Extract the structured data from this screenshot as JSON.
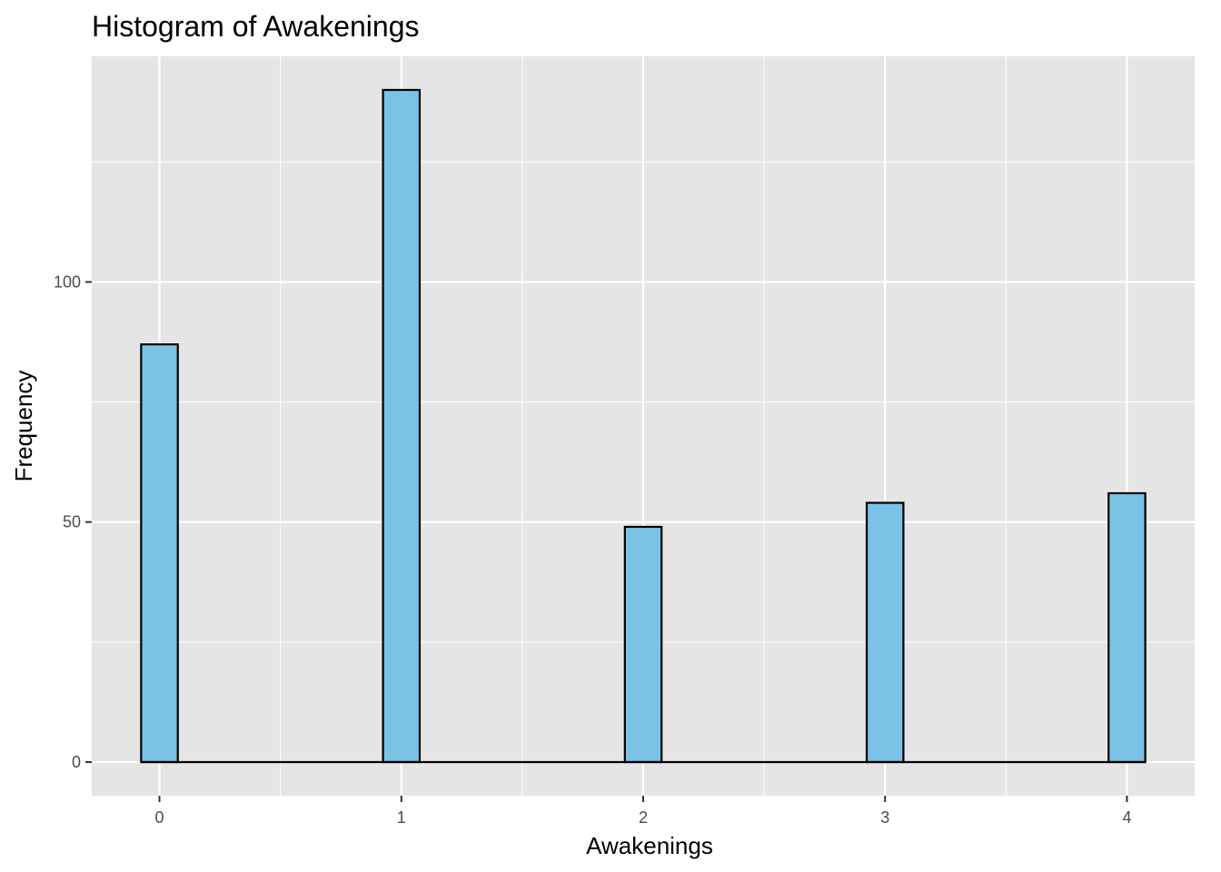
{
  "chart_data": {
    "type": "bar",
    "title": "Histogram of Awakenings",
    "xlabel": "Awakenings",
    "ylabel": "Frequency",
    "x_ticks": [
      0,
      1,
      2,
      3,
      4
    ],
    "y_ticks": [
      0,
      50,
      100
    ],
    "xlim": [
      -0.28,
      4.28
    ],
    "ylim": [
      -7,
      147
    ],
    "bin_width": 0.1517,
    "bins": [
      {
        "x": 0,
        "count": 87
      },
      {
        "x": 1,
        "count": 140
      },
      {
        "x": 2,
        "count": 49
      },
      {
        "x": 3,
        "count": 54
      },
      {
        "x": 4,
        "count": 56
      }
    ],
    "bar_fill": "#7bc3e6",
    "bar_stroke": "#000000",
    "panel_background": "#e5e5e5",
    "grid": true,
    "grid_color": "#ffffff"
  }
}
